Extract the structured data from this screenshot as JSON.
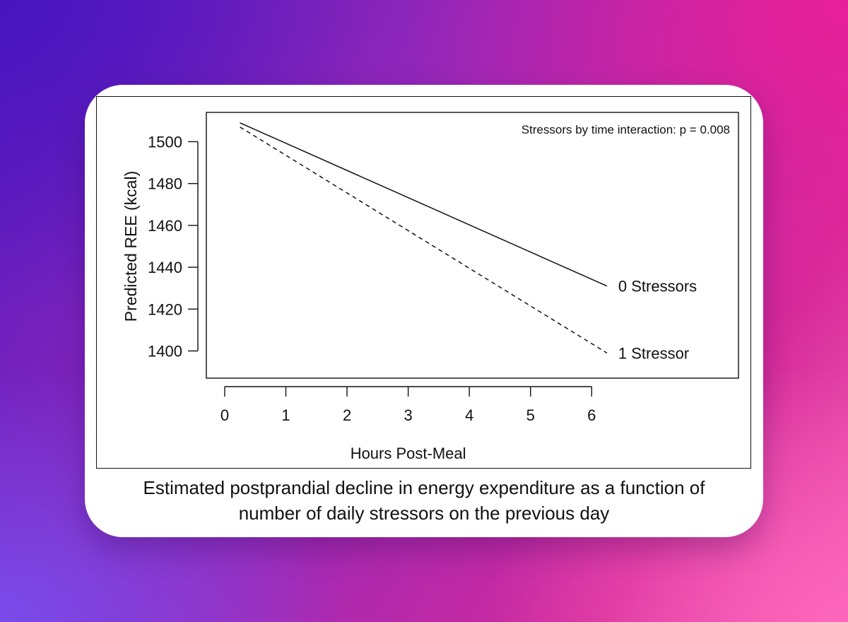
{
  "caption": {
    "line1": "Estimated postprandial decline in energy expenditure as a function of",
    "line2": "number of daily stressors on the previous day"
  },
  "chart_data": {
    "type": "line",
    "xlabel": "Hours Post-Meal",
    "ylabel": "Predicted REE (kcal)",
    "xlim": [
      -0.3,
      8.4
    ],
    "ylim": [
      1387,
      1514
    ],
    "xticks": [
      0,
      1,
      2,
      3,
      4,
      5,
      6
    ],
    "yticks": [
      1400,
      1420,
      1440,
      1460,
      1480,
      1500
    ],
    "annotation": "Stressors by time interaction: p = 0.008",
    "grid": false,
    "series": [
      {
        "name": "0 Stressors",
        "style": "solid",
        "x": [
          0.25,
          6.25
        ],
        "y": [
          1509,
          1431
        ]
      },
      {
        "name": "1 Stressor",
        "style": "dashed",
        "x": [
          0.25,
          6.25
        ],
        "y": [
          1507,
          1399
        ]
      }
    ]
  }
}
